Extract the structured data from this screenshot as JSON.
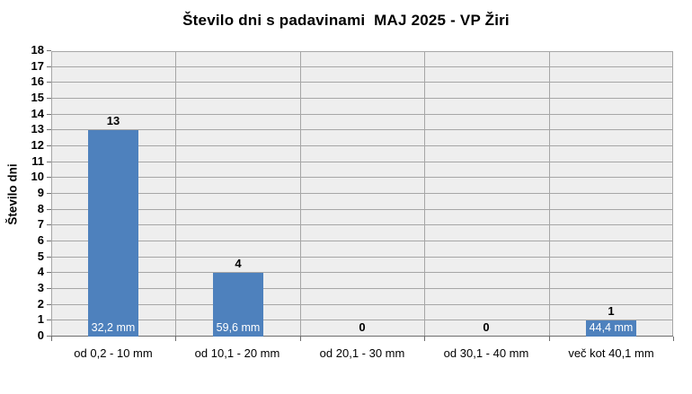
{
  "chart_data": {
    "type": "bar",
    "title": "Število dni s padavinami  MAJ 2025 - VP Žiri",
    "xlabel": "",
    "ylabel": "Število dni",
    "categories": [
      "od 0,2 - 10 mm",
      "od 10,1 - 20 mm",
      "od 20,1 - 30 mm",
      "od 30,1 - 40 mm",
      "več kot 40,1 mm"
    ],
    "values": [
      13,
      4,
      0,
      0,
      1
    ],
    "bar_value_labels": [
      "13",
      "4",
      "0",
      "0",
      "1"
    ],
    "bar_inner_labels": [
      "32,2 mm",
      "59,6 mm",
      "",
      "",
      "44,4 mm"
    ],
    "ylim": [
      0,
      18
    ],
    "ytick_step": 1,
    "grid": true,
    "legend": false,
    "colors": {
      "bar": "#4e81bd",
      "plot_background": "#eeeeee",
      "gridline": "#a6a6a6",
      "axis": "#6e6e6e",
      "inner_label_text": "#ffffff",
      "text": "#000000"
    }
  }
}
